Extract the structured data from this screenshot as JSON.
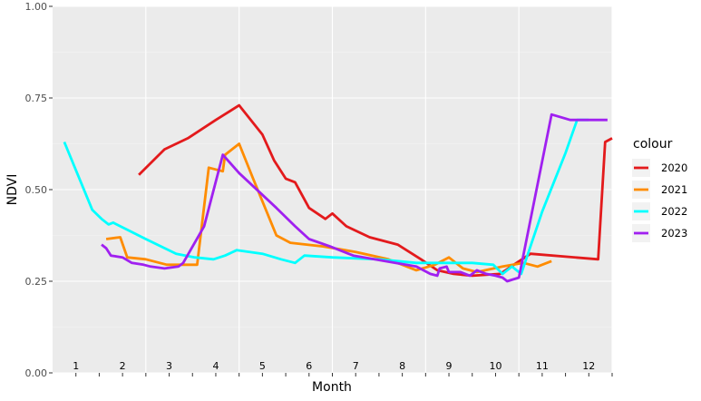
{
  "chart_data": {
    "type": "line",
    "title": "",
    "xlabel": "Month",
    "ylabel": "NDVI",
    "ylim": [
      0,
      1
    ],
    "xlim": [
      0.5,
      12.5
    ],
    "y_ticks": [
      "0.00",
      "0.25",
      "0.50",
      "0.75",
      "1.00"
    ],
    "month_labels": [
      "1",
      "2",
      "3",
      "4",
      "5",
      "6",
      "7",
      "8",
      "9",
      "10",
      "11",
      "12"
    ],
    "grid": true,
    "legend": {
      "title": "colour",
      "placement": "right"
    },
    "series": [
      {
        "name": "2020",
        "color": "#E31A1C",
        "points": [
          [
            2.35,
            0.54
          ],
          [
            2.9,
            0.61
          ],
          [
            3.4,
            0.64
          ],
          [
            4.0,
            0.69
          ],
          [
            4.5,
            0.73
          ],
          [
            5.0,
            0.65
          ],
          [
            5.25,
            0.58
          ],
          [
            5.5,
            0.53
          ],
          [
            5.7,
            0.52
          ],
          [
            6.0,
            0.45
          ],
          [
            6.35,
            0.42
          ],
          [
            6.5,
            0.435
          ],
          [
            6.8,
            0.4
          ],
          [
            7.3,
            0.37
          ],
          [
            7.9,
            0.35
          ],
          [
            8.4,
            0.31
          ],
          [
            8.75,
            0.28
          ],
          [
            9.1,
            0.27
          ],
          [
            9.5,
            0.265
          ],
          [
            10.1,
            0.27
          ],
          [
            10.45,
            0.3
          ],
          [
            10.75,
            0.325
          ],
          [
            12.2,
            0.31
          ],
          [
            12.35,
            0.63
          ],
          [
            12.5,
            0.64
          ]
        ]
      },
      {
        "name": "2021",
        "color": "#FF8C00",
        "points": [
          [
            1.65,
            0.365
          ],
          [
            1.95,
            0.37
          ],
          [
            2.1,
            0.315
          ],
          [
            2.5,
            0.31
          ],
          [
            2.95,
            0.295
          ],
          [
            3.6,
            0.295
          ],
          [
            3.85,
            0.56
          ],
          [
            4.15,
            0.55
          ],
          [
            4.2,
            0.595
          ],
          [
            4.5,
            0.625
          ],
          [
            4.8,
            0.53
          ],
          [
            5.3,
            0.375
          ],
          [
            5.6,
            0.355
          ],
          [
            6.3,
            0.345
          ],
          [
            7.0,
            0.33
          ],
          [
            7.7,
            0.31
          ],
          [
            8.3,
            0.28
          ],
          [
            8.7,
            0.295
          ],
          [
            9.0,
            0.315
          ],
          [
            9.3,
            0.285
          ],
          [
            9.6,
            0.275
          ],
          [
            10.15,
            0.29
          ],
          [
            10.6,
            0.3
          ],
          [
            10.9,
            0.29
          ],
          [
            11.2,
            0.305
          ]
        ]
      },
      {
        "name": "2022",
        "color": "#00FFFF",
        "points": [
          [
            0.75,
            0.63
          ],
          [
            1.35,
            0.445
          ],
          [
            1.55,
            0.42
          ],
          [
            1.7,
            0.405
          ],
          [
            1.8,
            0.41
          ],
          [
            2.5,
            0.365
          ],
          [
            3.15,
            0.325
          ],
          [
            3.55,
            0.315
          ],
          [
            3.95,
            0.31
          ],
          [
            4.2,
            0.32
          ],
          [
            4.45,
            0.335
          ],
          [
            5.0,
            0.325
          ],
          [
            5.4,
            0.31
          ],
          [
            5.7,
            0.3
          ],
          [
            5.9,
            0.32
          ],
          [
            6.5,
            0.315
          ],
          [
            7.5,
            0.31
          ],
          [
            8.3,
            0.3
          ],
          [
            9.0,
            0.3
          ],
          [
            9.5,
            0.3
          ],
          [
            9.95,
            0.295
          ],
          [
            10.15,
            0.27
          ],
          [
            10.35,
            0.29
          ],
          [
            10.55,
            0.27
          ],
          [
            11.0,
            0.44
          ],
          [
            11.5,
            0.6
          ],
          [
            11.75,
            0.69
          ],
          [
            12.0,
            0.69
          ]
        ]
      },
      {
        "name": "2023",
        "color": "#A020F0",
        "points": [
          [
            1.55,
            0.35
          ],
          [
            1.65,
            0.34
          ],
          [
            1.75,
            0.32
          ],
          [
            2.0,
            0.315
          ],
          [
            2.2,
            0.3
          ],
          [
            2.45,
            0.295
          ],
          [
            2.6,
            0.29
          ],
          [
            2.9,
            0.285
          ],
          [
            3.2,
            0.29
          ],
          [
            3.3,
            0.3
          ],
          [
            3.75,
            0.4
          ],
          [
            4.15,
            0.595
          ],
          [
            4.5,
            0.545
          ],
          [
            5.3,
            0.45
          ],
          [
            5.7,
            0.4
          ],
          [
            6.0,
            0.365
          ],
          [
            6.45,
            0.345
          ],
          [
            6.95,
            0.32
          ],
          [
            7.4,
            0.31
          ],
          [
            8.3,
            0.29
          ],
          [
            8.6,
            0.27
          ],
          [
            8.75,
            0.265
          ],
          [
            8.8,
            0.285
          ],
          [
            8.95,
            0.29
          ],
          [
            9.0,
            0.275
          ],
          [
            9.25,
            0.275
          ],
          [
            9.45,
            0.265
          ],
          [
            9.6,
            0.28
          ],
          [
            9.8,
            0.27
          ],
          [
            10.0,
            0.265
          ],
          [
            10.15,
            0.26
          ],
          [
            10.25,
            0.25
          ],
          [
            10.5,
            0.26
          ],
          [
            11.2,
            0.705
          ],
          [
            11.6,
            0.69
          ],
          [
            12.4,
            0.69
          ]
        ]
      }
    ]
  }
}
